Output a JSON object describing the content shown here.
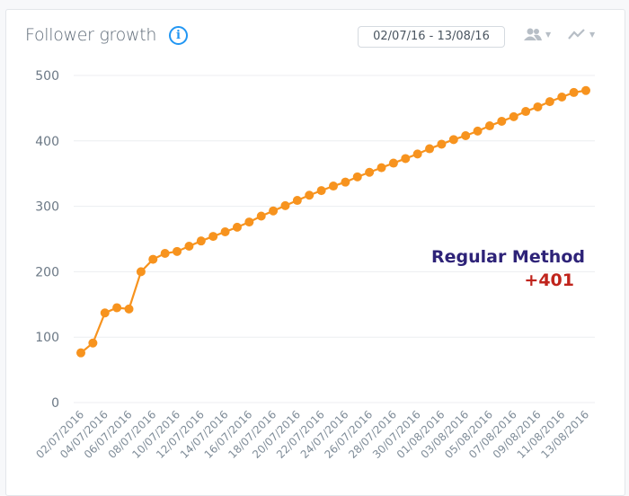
{
  "header": {
    "title": "Follower growth",
    "info_icon": "info-icon",
    "date_range": "02/07/16 - 13/08/16",
    "audience_icon": "people-icon",
    "chart_type_icon": "line-chart-icon"
  },
  "annotation": {
    "label": "Regular Method",
    "delta": "+401",
    "label_color": "#2e2378",
    "delta_color": "#c0241c"
  },
  "chart_data": {
    "type": "line",
    "title": "",
    "xlabel": "",
    "ylabel": "",
    "ylim": [
      0,
      500
    ],
    "y_ticks": [
      0,
      100,
      200,
      300,
      400,
      500
    ],
    "grid": true,
    "color": "#f7931e",
    "x": [
      "02/07/2016",
      "03/07/2016",
      "04/07/2016",
      "05/07/2016",
      "06/07/2016",
      "07/07/2016",
      "08/07/2016",
      "09/07/2016",
      "10/07/2016",
      "11/07/2016",
      "12/07/2016",
      "13/07/2016",
      "14/07/2016",
      "15/07/2016",
      "16/07/2016",
      "17/07/2016",
      "18/07/2016",
      "19/07/2016",
      "20/07/2016",
      "21/07/2016",
      "22/07/2016",
      "23/07/2016",
      "24/07/2016",
      "25/07/2016",
      "26/07/2016",
      "27/07/2016",
      "28/07/2016",
      "29/07/2016",
      "30/07/2016",
      "31/07/2016",
      "01/08/2016",
      "02/08/2016",
      "03/08/2016",
      "04/08/2016",
      "05/08/2016",
      "06/08/2016",
      "07/08/2016",
      "08/08/2016",
      "09/08/2016",
      "10/08/2016",
      "11/08/2016",
      "12/08/2016",
      "13/08/2016"
    ],
    "x_tick_labels": [
      "02/07/2016",
      "04/07/2016",
      "06/07/2016",
      "08/07/2016",
      "10/07/2016",
      "12/07/2016",
      "14/07/2016",
      "16/07/2016",
      "18/07/2016",
      "20/07/2016",
      "22/07/2016",
      "24/07/2016",
      "26/07/2016",
      "28/07/2016",
      "30/07/2016",
      "01/08/2016",
      "03/08/2016",
      "05/08/2016",
      "07/08/2016",
      "09/08/2016",
      "11/08/2016",
      "13/08/2016"
    ],
    "values": [
      76,
      91,
      137,
      145,
      143,
      200,
      219,
      228,
      231,
      239,
      247,
      254,
      261,
      268,
      276,
      285,
      293,
      301,
      309,
      317,
      324,
      331,
      337,
      345,
      352,
      359,
      366,
      373,
      380,
      388,
      395,
      402,
      408,
      415,
      423,
      430,
      437,
      445,
      452,
      460,
      467,
      474,
      477
    ]
  }
}
